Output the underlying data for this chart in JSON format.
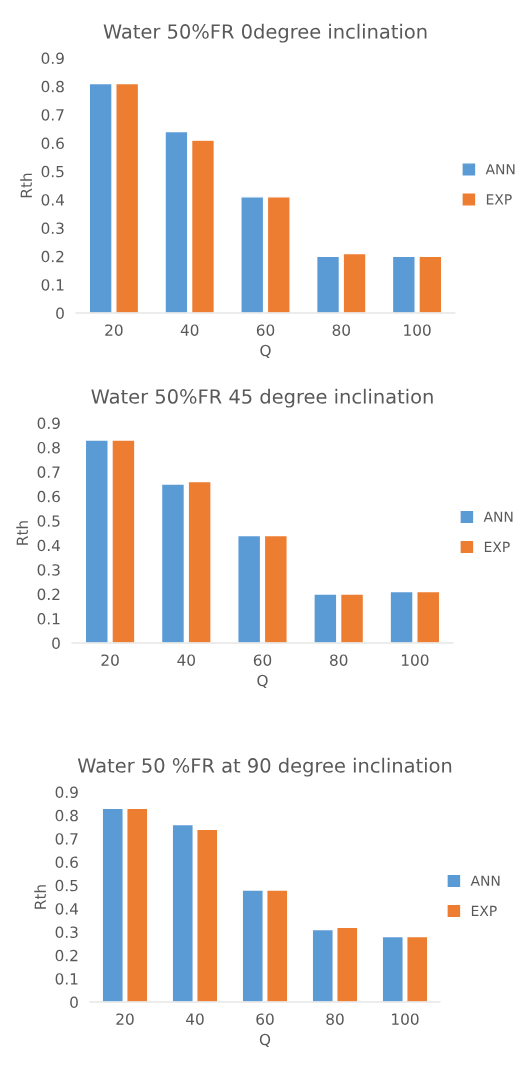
{
  "chart_data": [
    {
      "type": "bar",
      "title": "Water 50%FR 0degree inclination",
      "xlabel": "Q",
      "ylabel": "Rth",
      "categories": [
        "20",
        "40",
        "60",
        "80",
        "100"
      ],
      "series": [
        {
          "name": "ANN",
          "color": "#5b9bd5",
          "values": [
            0.81,
            0.64,
            0.41,
            0.2,
            0.2
          ]
        },
        {
          "name": "EXP",
          "color": "#ed7d31",
          "values": [
            0.81,
            0.61,
            0.41,
            0.21,
            0.2
          ]
        }
      ],
      "ylim": [
        0,
        0.9
      ],
      "yticks": [
        0,
        0.1,
        0.2,
        0.3,
        0.4,
        0.5,
        0.6,
        0.7,
        0.8,
        0.9
      ],
      "grid": false,
      "legend": "right"
    },
    {
      "type": "bar",
      "title": "Water 50%FR 45 degree inclination",
      "xlabel": "Q",
      "ylabel": "Rth",
      "categories": [
        "20",
        "40",
        "60",
        "80",
        "100"
      ],
      "series": [
        {
          "name": "ANN",
          "color": "#5b9bd5",
          "values": [
            0.83,
            0.65,
            0.44,
            0.2,
            0.21
          ]
        },
        {
          "name": "EXP",
          "color": "#ed7d31",
          "values": [
            0.83,
            0.66,
            0.44,
            0.2,
            0.21
          ]
        }
      ],
      "ylim": [
        0,
        0.9
      ],
      "yticks": [
        0,
        0.1,
        0.2,
        0.3,
        0.4,
        0.5,
        0.6,
        0.7,
        0.8,
        0.9
      ],
      "grid": false,
      "legend": "right"
    },
    {
      "type": "bar",
      "title": "Water 50 %FR at 90 degree inclination",
      "xlabel": "Q",
      "ylabel": "Rth",
      "categories": [
        "20",
        "40",
        "60",
        "80",
        "100"
      ],
      "series": [
        {
          "name": "ANN",
          "color": "#5b9bd5",
          "values": [
            0.83,
            0.76,
            0.48,
            0.31,
            0.28
          ]
        },
        {
          "name": "EXP",
          "color": "#ed7d31",
          "values": [
            0.83,
            0.74,
            0.48,
            0.32,
            0.28
          ]
        }
      ],
      "ylim": [
        0,
        0.9
      ],
      "yticks": [
        0,
        0.1,
        0.2,
        0.3,
        0.4,
        0.5,
        0.6,
        0.7,
        0.8,
        0.9
      ],
      "grid": false,
      "legend": "right"
    }
  ]
}
